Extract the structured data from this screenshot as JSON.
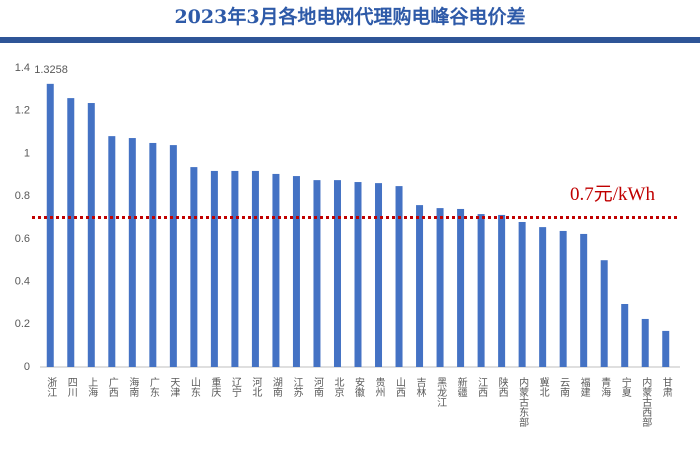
{
  "chart_data": {
    "type": "bar",
    "title": "2023年3月各地电网代理购电峰谷电价差",
    "categories": [
      "浙江",
      "四川",
      "上海",
      "广西",
      "海南",
      "广东",
      "天津",
      "山东",
      "重庆",
      "辽宁",
      "河北",
      "湖南",
      "江苏",
      "河南",
      "北京",
      "安徽",
      "贵州",
      "山西",
      "吉林",
      "黑龙江",
      "新疆",
      "江西",
      "陕西",
      "内蒙古东部",
      "冀北",
      "云南",
      "福建",
      "青海",
      "宁夏",
      "内蒙古西部",
      "甘肃"
    ],
    "values": [
      1.3258,
      1.259,
      1.236,
      1.081,
      1.072,
      1.049,
      1.039,
      0.936,
      0.918,
      0.918,
      0.918,
      0.904,
      0.894,
      0.875,
      0.875,
      0.866,
      0.861,
      0.847,
      0.758,
      0.744,
      0.74,
      0.716,
      0.712,
      0.679,
      0.655,
      0.637,
      0.623,
      0.5,
      0.295,
      0.225,
      0.169
    ],
    "value_labels": [
      "1.3258",
      null,
      null,
      null,
      null,
      null,
      null,
      null,
      null,
      null,
      null,
      null,
      null,
      null,
      null,
      null,
      null,
      null,
      null,
      null,
      null,
      null,
      null,
      null,
      null,
      null,
      null,
      null,
      null,
      null,
      null
    ],
    "color": "#4472c4",
    "ylim": [
      0,
      1.4
    ],
    "yticks": [
      0,
      0.2,
      0.4,
      0.6,
      0.8,
      1,
      1.2,
      1.4
    ],
    "grid": false,
    "reference_line": {
      "value": 0.7,
      "label": "0.7元/kWh",
      "color": "#c00000"
    }
  }
}
